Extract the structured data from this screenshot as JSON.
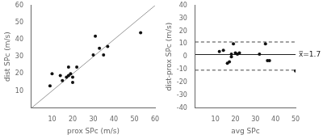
{
  "chart_data": [
    {
      "type": "scatter",
      "xlabel": "prox SPc (m/s)",
      "ylabel": "dist SPc (m/s)",
      "series": [
        {
          "type": "line",
          "color": "#999999",
          "x": [
            0,
            60
          ],
          "values": [
            0,
            60
          ]
        },
        {
          "type": "scatter",
          "color": "#111111",
          "marker": "circle",
          "x": [
            9,
            10,
            14,
            15,
            17,
            18,
            18,
            19,
            20,
            20,
            22,
            30,
            31,
            33,
            35,
            37,
            53
          ],
          "values": [
            13,
            20,
            19,
            16,
            18,
            19,
            24,
            20,
            18,
            15,
            24,
            31,
            42,
            35,
            31,
            36,
            44
          ]
        }
      ],
      "xlim": [
        0,
        60
      ],
      "ylim": [
        0,
        60
      ],
      "xticks": [
        10,
        20,
        30,
        40,
        50,
        60
      ],
      "yticks": [
        10,
        20,
        30,
        40,
        50,
        60
      ],
      "grid": false
    },
    {
      "type": "scatter",
      "xlabel": "avg SPc",
      "ylabel": "dist-prox SPc (m/s)",
      "series": [
        {
          "type": "scatter",
          "color": "#111111",
          "marker": "circle",
          "x": [
            12,
            14,
            16,
            17,
            18,
            18,
            19,
            20,
            21,
            22,
            32,
            35,
            36,
            37,
            50
          ],
          "values": [
            4,
            5,
            -5,
            -4,
            2,
            0,
            10,
            3,
            2,
            3,
            2,
            10,
            -3,
            -3,
            -11
          ]
        }
      ],
      "hlines": [
        {
          "value": 1.7,
          "color": "#222222",
          "line_style": "solid"
        },
        {
          "value": 11.5,
          "color": "#444444",
          "line_style": "dashed"
        },
        {
          "value": -10.5,
          "color": "#444444",
          "line_style": "dashed"
        }
      ],
      "annotations": [
        {
          "text": "x̅=1.7",
          "y": 1.7
        }
      ],
      "xlim": [
        0,
        50
      ],
      "ylim": [
        -40,
        40
      ],
      "xticks": [
        10,
        20,
        30,
        40,
        50
      ],
      "yticks": [
        -40,
        -30,
        -20,
        -10,
        0,
        10,
        20,
        30,
        40
      ],
      "grid": false
    }
  ]
}
